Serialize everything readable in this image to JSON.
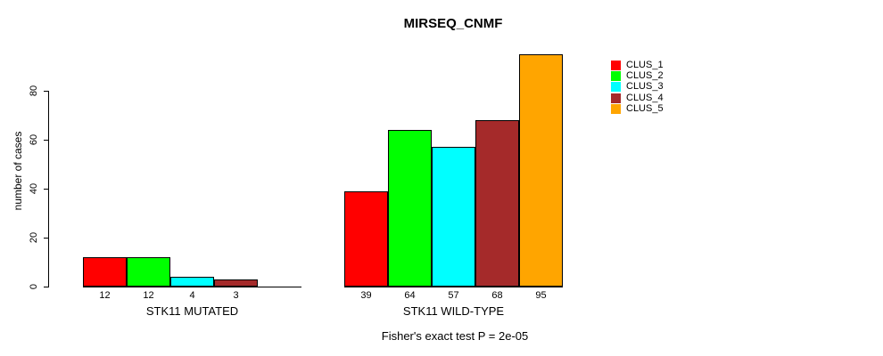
{
  "chart_data": {
    "type": "bar",
    "title": "MIRSEQ_CNMF",
    "ylabel": "number of cases",
    "xlabel": "",
    "ylim": [
      0,
      95
    ],
    "yticks": [
      0,
      20,
      40,
      60,
      80
    ],
    "grid": false,
    "legend_position": "top-right",
    "categories": [
      "STK11 MUTATED",
      "STK11 WILD-TYPE"
    ],
    "series": [
      {
        "name": "CLUS_1",
        "color": "#ff0000",
        "values": [
          12,
          39
        ]
      },
      {
        "name": "CLUS_2",
        "color": "#00ff00",
        "values": [
          12,
          64
        ]
      },
      {
        "name": "CLUS_3",
        "color": "#00ffff",
        "values": [
          4,
          57
        ]
      },
      {
        "name": "CLUS_4",
        "color": "#a52a2a",
        "values": [
          3,
          68
        ]
      },
      {
        "name": "CLUS_5",
        "color": "#ffa500",
        "values": [
          0,
          95
        ]
      }
    ],
    "bar_labels": [
      [
        "12",
        "12",
        "4",
        "3",
        ""
      ],
      [
        "39",
        "64",
        "57",
        "68",
        "95"
      ]
    ],
    "annotation": "Fisher's exact test P = 2e-05"
  }
}
